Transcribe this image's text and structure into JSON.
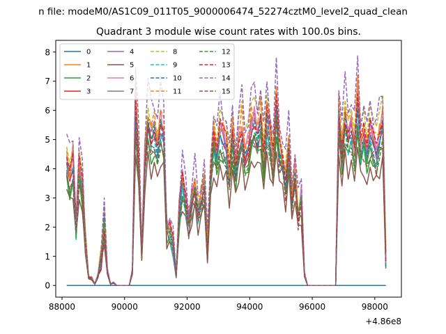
{
  "suptitle": "n file: modeM0/AS1C09_011T05_9000006474_52274cztM0_level2_quad_clean",
  "chart_data": {
    "type": "line",
    "title": "Quadrant 3 module wise count rates with 100.0s bins.",
    "xlabel": "",
    "ylabel": "",
    "x_offset_label": "+4.86e8",
    "xlim": [
      87800,
      98850
    ],
    "ylim": [
      -0.4,
      8.4
    ],
    "x_ticks": [
      88000,
      90000,
      92000,
      94000,
      96000,
      98000
    ],
    "x_tick_labels": [
      "88000",
      "90000",
      "92000",
      "94000",
      "96000",
      "98000"
    ],
    "y_ticks": [
      0,
      1,
      2,
      3,
      4,
      5,
      6,
      7,
      8
    ],
    "y_tick_labels": [
      "0",
      "1",
      "2",
      "3",
      "4",
      "5",
      "6",
      "7",
      "8"
    ],
    "grid": false,
    "legend_position": "top-left",
    "legend_columns": 4,
    "series": [
      {
        "name": "0",
        "color": "#1f77b4",
        "dash": "solid"
      },
      {
        "name": "1",
        "color": "#ff7f0e",
        "dash": "solid"
      },
      {
        "name": "2",
        "color": "#2ca02c",
        "dash": "solid"
      },
      {
        "name": "3",
        "color": "#d62728",
        "dash": "solid"
      },
      {
        "name": "4",
        "color": "#9467bd",
        "dash": "solid"
      },
      {
        "name": "5",
        "color": "#8c564b",
        "dash": "solid"
      },
      {
        "name": "6",
        "color": "#e377c2",
        "dash": "solid"
      },
      {
        "name": "7",
        "color": "#7f7f7f",
        "dash": "solid"
      },
      {
        "name": "8",
        "color": "#bcbd22",
        "dash": "dashed"
      },
      {
        "name": "9",
        "color": "#17becf",
        "dash": "dashed"
      },
      {
        "name": "10",
        "color": "#1f77b4",
        "dash": "dashed"
      },
      {
        "name": "11",
        "color": "#ff7f0e",
        "dash": "dashed"
      },
      {
        "name": "12",
        "color": "#2ca02c",
        "dash": "dashed"
      },
      {
        "name": "13",
        "color": "#d62728",
        "dash": "dashed"
      },
      {
        "name": "14",
        "color": "#9467bd",
        "dash": "dashed"
      },
      {
        "name": "15",
        "color": "#8c564b",
        "dash": "dashed"
      }
    ],
    "x": [
      88150,
      88250,
      88350,
      88450,
      88550,
      88650,
      88750,
      88850,
      88950,
      89050,
      89150,
      89250,
      89350,
      89450,
      89550,
      89650,
      89750,
      89850,
      89950,
      90050,
      90150,
      90250,
      90350,
      90450,
      90550,
      90650,
      90750,
      90850,
      90950,
      91050,
      91150,
      91250,
      91350,
      91450,
      91550,
      91650,
      91750,
      91850,
      91950,
      92050,
      92150,
      92250,
      92350,
      92450,
      92550,
      92650,
      92750,
      92850,
      92950,
      93050,
      93150,
      93250,
      93350,
      93450,
      93550,
      93650,
      93750,
      93850,
      93950,
      94050,
      94150,
      94250,
      94350,
      94450,
      94550,
      94650,
      94750,
      94850,
      94950,
      95050,
      95150,
      95250,
      95350,
      95450,
      95550,
      95650,
      95750,
      95850,
      95950,
      96050,
      96150,
      96250,
      96350,
      96450,
      96550,
      96650,
      96750,
      96850,
      96950,
      97050,
      97150,
      97250,
      97350,
      97450,
      97550,
      97650,
      97750,
      97850,
      97950,
      98050,
      98150,
      98250,
      98350
    ],
    "base_profile": [
      4.4,
      3.8,
      4.3,
      2.0,
      4.1,
      3.4,
      1.5,
      0.3,
      0.25,
      0.05,
      0.35,
      0.9,
      2.2,
      0.5,
      0.05,
      0.1,
      0,
      0,
      0,
      0,
      0,
      0.5,
      6.3,
      4.4,
      1.2,
      4.4,
      5.8,
      5.2,
      5.4,
      5.0,
      5.6,
      5.3,
      2.0,
      1.9,
      1.4,
      0.35,
      2.6,
      3.7,
      3.0,
      2.2,
      3.0,
      3.5,
      2.6,
      3.1,
      3.6,
      1.3,
      3.8,
      5.2,
      4.4,
      5.4,
      5.1,
      4.9,
      3.8,
      5.2,
      4.1,
      5.0,
      5.5,
      4.6,
      4.9,
      5.5,
      5.7,
      5.3,
      5.8,
      4.4,
      5.9,
      5.2,
      4.3,
      6.3,
      4.8,
      4.4,
      3.7,
      4.9,
      3.2,
      3.9,
      2.5,
      3.1,
      0.4,
      0,
      0,
      0,
      0,
      0,
      0,
      0,
      0,
      0,
      0,
      6.0,
      4.7,
      5.9,
      5.2,
      5.5,
      4.8,
      6.5,
      4.9,
      5.3,
      4.4,
      5.4,
      5.0,
      4.7,
      5.2,
      5.7,
      1.0
    ],
    "module_scales": [
      0,
      1.0,
      0.85,
      0.95,
      0.98,
      0.75,
      1.02,
      0.9,
      1.08,
      0.92,
      0.96,
      1.05,
      0.88,
      1.0,
      1.18,
      0.86
    ]
  }
}
